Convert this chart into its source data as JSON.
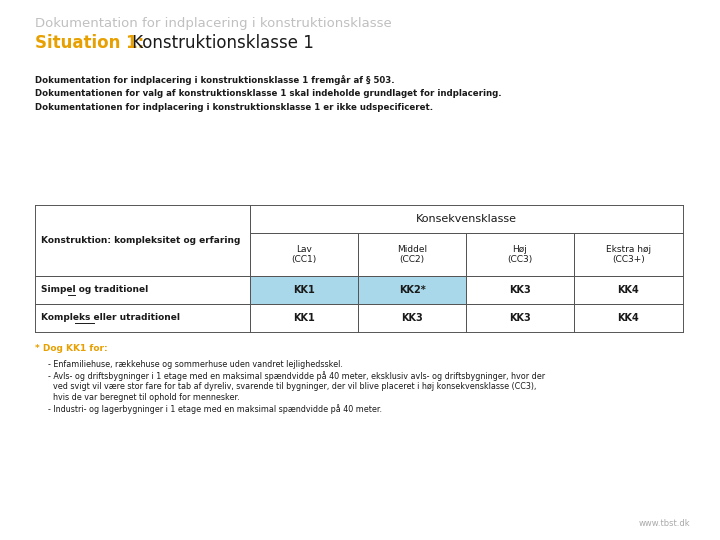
{
  "title_gray": "Dokumentation for indplacering i konstruktionsklasse",
  "title_yellow": "Situation 1:",
  "title_black": " Konstruktionsklasse 1",
  "body_lines": [
    "Dokumentation for indplacering i konstruktionsklasse 1 fremgår af § 503.",
    "Dokumentationen for valg af konstruktionsklasse 1 skal indeholde grundlaget for indplacering.",
    "Dokumentationen for indplacering i konstruktionsklasse 1 er ikke udspecificeret."
  ],
  "sub_labels": [
    "Lav\n(CC1)",
    "Middel\n(CC2)",
    "Høj\n(CC3)",
    "Ekstra høj\n(CC3+)"
  ],
  "table_row1_label": "Simpel og traditionel",
  "table_row1_ul": "og",
  "table_row1_values": [
    "KK1",
    "KK2*",
    "KK3",
    "KK4"
  ],
  "table_row1_highlight": [
    true,
    true,
    false,
    false
  ],
  "table_row2_label": "Kompleks eller utraditionel",
  "table_row2_ul": "eller",
  "table_row2_values": [
    "KK1",
    "KK3",
    "KK3",
    "KK4"
  ],
  "table_row2_highlight": [
    false,
    false,
    false,
    false
  ],
  "footnote_label": "* Dog KK1 for:",
  "footnote_line1": "- Enfamiliehuse, rækkehuse og sommerhuse uden vandret lejlighedsskel.",
  "footnote_line2a": "- Avls- og driftsbygninger i 1 etage med en maksimal spændvidde på 40 meter, eksklusiv avls- og driftsbygninger, hvor der",
  "footnote_line2b": "  ved svigt vil være stor fare for tab af dyreliv, svarende til bygninger, der vil blive placeret i høj konsekvensklasse (CC3),",
  "footnote_line2c": "  hvis de var beregnet til ophold for mennesker.",
  "footnote_line3": "- Industri- og lagerbygninger i 1 etage med en maksimal spændvidde på 40 meter.",
  "website": "www.tbst.dk",
  "color_gray_title": "#c0c0c0",
  "color_yellow": "#e8a000",
  "color_highlight": "#a8d8ea",
  "color_border": "#555555",
  "color_black": "#1a1a1a",
  "color_footnote_gray": "#aaaaaa",
  "bg_color": "#ffffff"
}
